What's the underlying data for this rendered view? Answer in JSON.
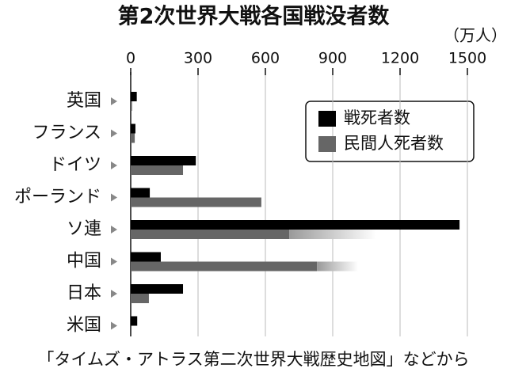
{
  "chart_data": {
    "type": "bar",
    "orientation": "horizontal",
    "title": "第2次世界大戦各国戦没者数",
    "unit": "（万人）",
    "categories": [
      "英国",
      "フランス",
      "ドイツ",
      "ポーランド",
      "ソ連",
      "中国",
      "日本",
      "米国"
    ],
    "series": [
      {
        "name": "戦死者数",
        "color": "#000000",
        "values": [
          27,
          21,
          290,
          85,
          1465,
          134,
          233,
          29
        ]
      },
      {
        "name": "民間人死者数",
        "color": "#666666",
        "values": [
          6,
          18,
          233,
          582,
          706,
          830,
          81,
          null
        ],
        "upper": [
          null,
          null,
          null,
          null,
          1094,
          1013,
          null,
          null
        ]
      }
    ],
    "xlim": [
      0,
      1500
    ],
    "xticks": [
      0,
      300,
      600,
      900,
      1200,
      1500
    ],
    "grid": true,
    "legend": "upper right",
    "source": "「タイムズ・アトラス第二次世界大戦歴史地図」などから"
  }
}
